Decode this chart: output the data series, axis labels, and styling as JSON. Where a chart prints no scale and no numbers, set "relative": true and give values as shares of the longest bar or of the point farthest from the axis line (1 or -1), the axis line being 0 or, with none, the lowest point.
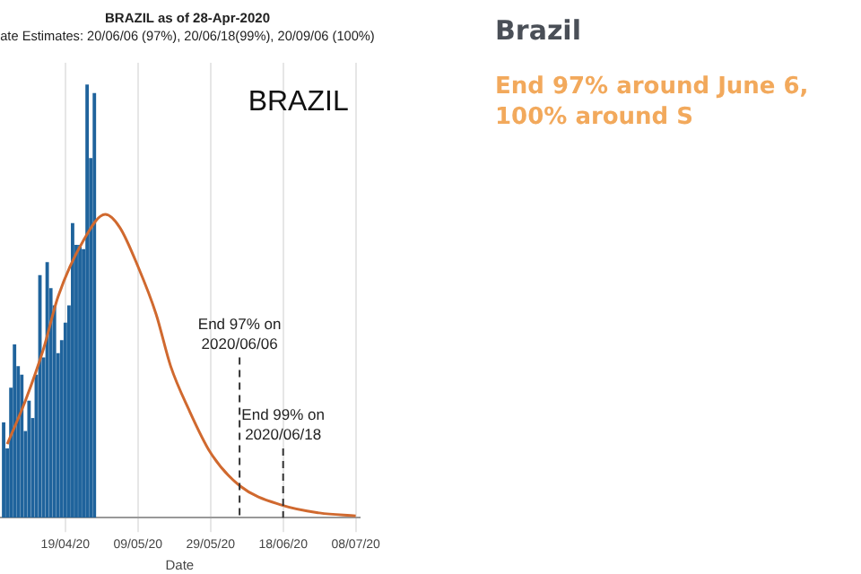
{
  "chart_data": {
    "type": "bar",
    "title": "BRAZIL as of 28-Apr-2020",
    "subtitle": "ate Estimates: 20/06/06 (97%), 20/06/18(99%), 20/09/06 (100%)",
    "xlabel": "Date",
    "relative": true,
    "grid": "x",
    "xlim": [
      "2020-04-01",
      "2020-07-09"
    ],
    "xticks": [
      {
        "value": "2020-04-19",
        "label": "19/04/20"
      },
      {
        "value": "2020-05-09",
        "label": "09/05/20"
      },
      {
        "value": "2020-05-29",
        "label": "29/05/20"
      },
      {
        "value": "2020-06-18",
        "label": "18/06/20"
      },
      {
        "value": "2020-07-08",
        "label": "08/07/20"
      }
    ],
    "series": [
      {
        "color": "#1f639c",
        "x": [
          "2020-04-02",
          "2020-04-03",
          "2020-04-04",
          "2020-04-05",
          "2020-04-06",
          "2020-04-07",
          "2020-04-08",
          "2020-04-09",
          "2020-04-10",
          "2020-04-11",
          "2020-04-12",
          "2020-04-13",
          "2020-04-14",
          "2020-04-15",
          "2020-04-16",
          "2020-04-17",
          "2020-04-18",
          "2020-04-19",
          "2020-04-20",
          "2020-04-21",
          "2020-04-22",
          "2020-04-23",
          "2020-04-24",
          "2020-04-25",
          "2020-04-26",
          "2020-04-27"
        ],
        "values": [
          0.22,
          0.16,
          0.3,
          0.4,
          0.35,
          0.33,
          0.2,
          0.27,
          0.23,
          0.33,
          0.56,
          0.37,
          0.59,
          0.53,
          0.49,
          0.38,
          0.41,
          0.45,
          0.49,
          0.68,
          0.63,
          0.63,
          0.62,
          1,
          0.83,
          0.98
        ]
      },
      {
        "type": "line",
        "color": "#d0692f",
        "marker": "none",
        "x": [
          "2020-04-03",
          "2020-04-08",
          "2020-04-13",
          "2020-04-17",
          "2020-04-24",
          "2020-04-30",
          "2020-05-04",
          "2020-05-09",
          "2020-05-14",
          "2020-05-18",
          "2020-05-23",
          "2020-05-29",
          "2020-06-06",
          "2020-06-18",
          "2020-06-28",
          "2020-07-08"
        ],
        "values": [
          0.17,
          0.27,
          0.39,
          0.51,
          0.64,
          0.7,
          0.67,
          0.58,
          0.47,
          0.35,
          0.25,
          0.15,
          0.074,
          0.028,
          0.011,
          0.004
        ]
      }
    ],
    "ref_lines": [
      {
        "axis": "x",
        "value": "2020-06-06",
        "label": "End 97% on 2020/06/06",
        "color": "#333333",
        "line_style": "dashed"
      },
      {
        "axis": "x",
        "value": "2020-06-18",
        "label": "End 99% on 2020/06/18",
        "color": "#333333",
        "line_style": "dashed"
      }
    ],
    "annotations": [
      "BRAZIL",
      "Brazil",
      "End 97% around June 6, 100% around S"
    ]
  }
}
